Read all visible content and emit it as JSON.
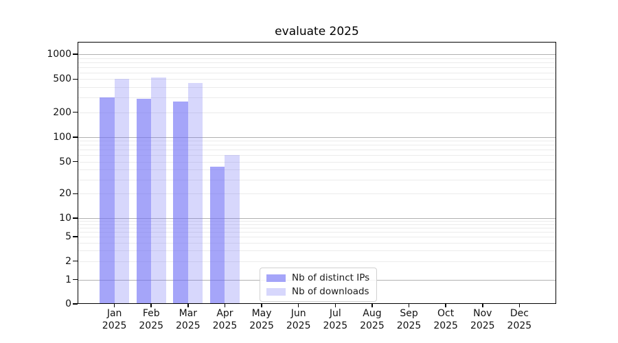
{
  "chart_data": {
    "type": "bar",
    "title": "evaluate 2025",
    "x_categories": [
      {
        "line1": "Jan",
        "line2": "2025"
      },
      {
        "line1": "Feb",
        "line2": "2025"
      },
      {
        "line1": "Mar",
        "line2": "2025"
      },
      {
        "line1": "Apr",
        "line2": "2025"
      },
      {
        "line1": "May",
        "line2": "2025"
      },
      {
        "line1": "Jun",
        "line2": "2025"
      },
      {
        "line1": "Jul",
        "line2": "2025"
      },
      {
        "line1": "Aug",
        "line2": "2025"
      },
      {
        "line1": "Sep",
        "line2": "2025"
      },
      {
        "line1": "Oct",
        "line2": "2025"
      },
      {
        "line1": "Nov",
        "line2": "2025"
      },
      {
        "line1": "Dec",
        "line2": "2025"
      }
    ],
    "series": [
      {
        "name": "Nb of distinct IPs",
        "color": "rgba(110,110,245,0.62)",
        "values": [
          300,
          290,
          268,
          43,
          0,
          0,
          0,
          0,
          0,
          0,
          0,
          0
        ]
      },
      {
        "name": "Nb of downloads",
        "color": "rgba(110,110,245,0.28)",
        "values": [
          500,
          520,
          450,
          60,
          0,
          0,
          0,
          0,
          0,
          0,
          0,
          0
        ]
      }
    ],
    "y_axis": {
      "scale": "symlog",
      "tick_labels": [
        "1000",
        "500",
        "200",
        "100",
        "50",
        "20",
        "10",
        "5",
        "2",
        "1",
        "0"
      ],
      "ylim": [
        0,
        1400
      ]
    },
    "grid": {
      "major_values": [
        1,
        10,
        100,
        1000
      ],
      "major_color": "#b0b0b0",
      "minor_color": "#ebebeb",
      "minor_on": true
    },
    "legend": {
      "position": "lower-center",
      "entries": [
        "Nb of distinct IPs",
        "Nb of downloads"
      ]
    }
  }
}
